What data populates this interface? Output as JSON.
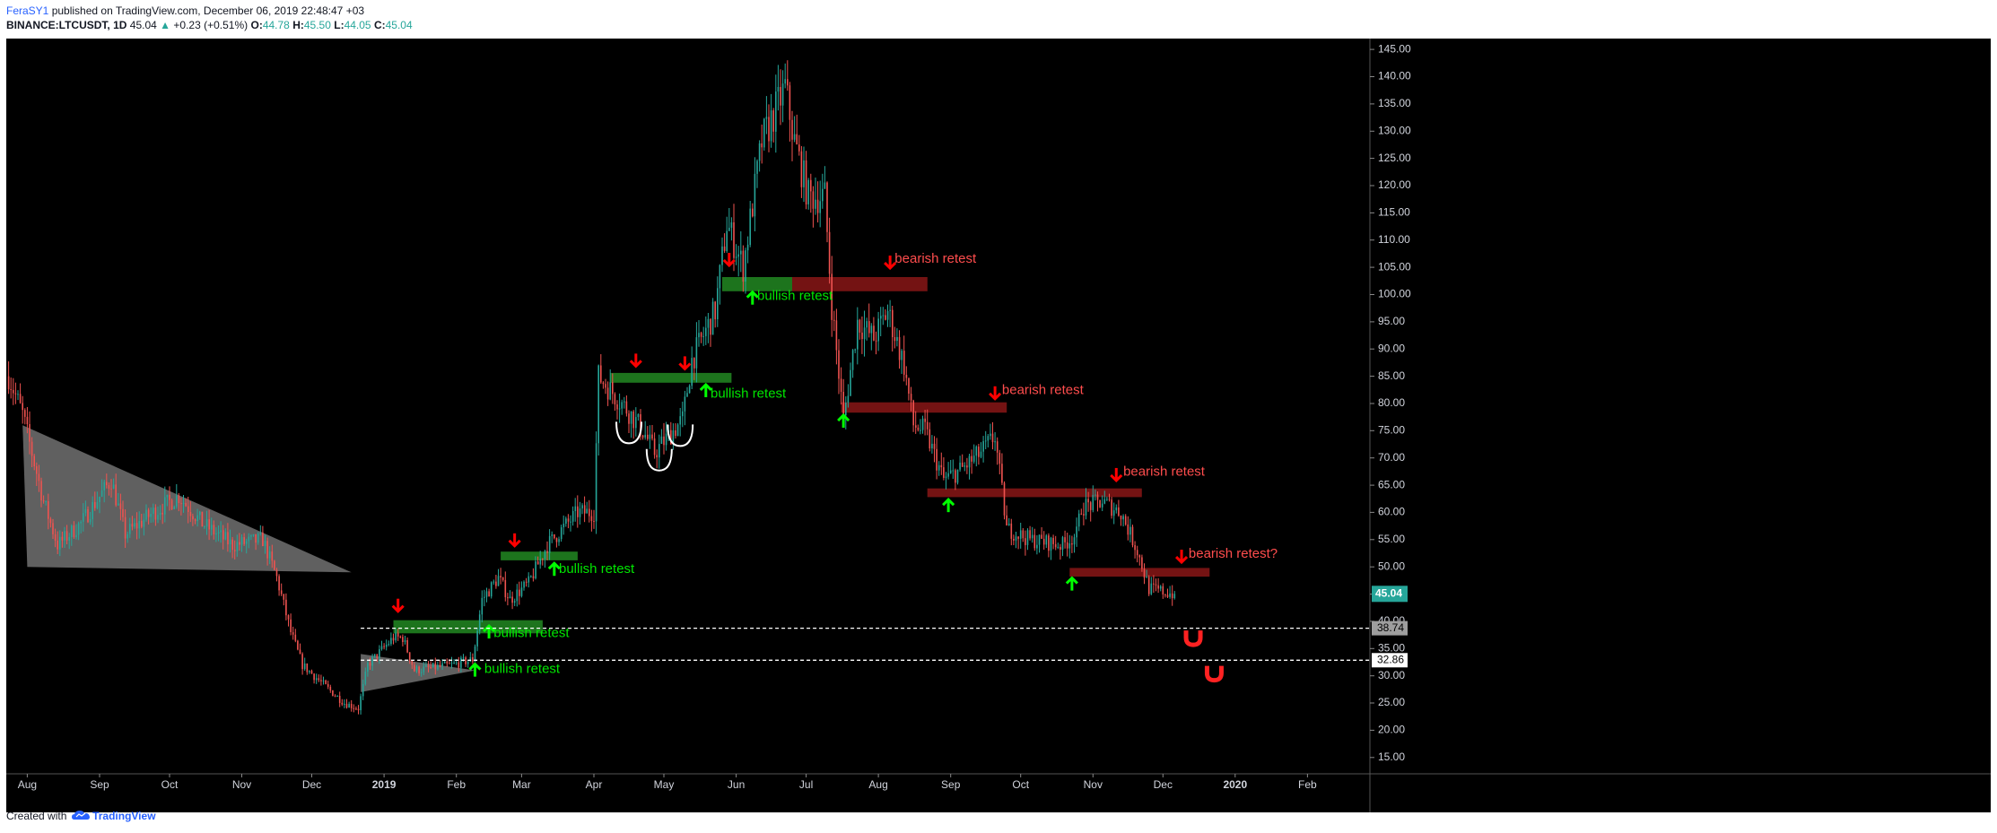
{
  "header": {
    "author": "FeraSY1",
    "published_text": " published on TradingView.com, December 06, 2019 22:48:47 +03",
    "symbol": "BINANCE:LTCUSDT, 1D",
    "last": "45.04",
    "change_arrow": "▲",
    "change": "+0.23 (+0.51%)",
    "open_label": "O:",
    "open": "44.78",
    "high_label": "H:",
    "high": "45.50",
    "low_label": "L:",
    "low": "44.05",
    "close_label": "C:",
    "close": "45.04"
  },
  "footer": {
    "created_with": "Created with",
    "brand": "TradingView",
    "brand_icon": "tradingview-cloud-icon"
  },
  "colors": {
    "background": "#000000",
    "up": "#26a69a",
    "down": "#ef5350",
    "support_zone": "#1f7a1f",
    "resistance_zone": "#7a1414",
    "bullish_text": "#00e600",
    "bearish_text": "#ff4d4d",
    "price_badge": "#26a69a"
  },
  "chart_data": {
    "type": "candlestick",
    "symbol": "BINANCE:LTCUSDT",
    "timeframe": "1D",
    "x_tick_labels": [
      "Aug",
      "Sep",
      "Oct",
      "Nov",
      "Dec",
      "2019",
      "Feb",
      "Mar",
      "Apr",
      "May",
      "Jun",
      "Jul",
      "Aug",
      "Sep",
      "Oct",
      "Nov",
      "Dec",
      "2020",
      "Feb"
    ],
    "y_tick_labels": [
      "15.00",
      "20.00",
      "25.00",
      "30.00",
      "35.00",
      "40.00",
      "45.00",
      "50.00",
      "55.00",
      "60.00",
      "65.00",
      "70.00",
      "75.00",
      "80.00",
      "85.00",
      "90.00",
      "95.00",
      "100.00",
      "105.00",
      "110.00",
      "115.00",
      "120.00",
      "125.00",
      "130.00",
      "135.00",
      "140.00",
      "145.00"
    ],
    "ylim": [
      12,
      147
    ],
    "xlim": [
      "2018-07-23",
      "2020-02-27"
    ],
    "last_price_label": "45.04",
    "last_price": 45.04,
    "levels": [
      {
        "label": "38.74",
        "value": 38.74
      },
      {
        "label": "32.86",
        "value": 32.86
      }
    ],
    "price_path": [
      [
        "2018-07-24",
        85
      ],
      [
        "2018-07-30",
        78
      ],
      [
        "2018-08-08",
        62
      ],
      [
        "2018-08-14",
        54
      ],
      [
        "2018-08-24",
        58
      ],
      [
        "2018-09-06",
        66
      ],
      [
        "2018-09-12",
        56
      ],
      [
        "2018-09-24",
        60
      ],
      [
        "2018-10-05",
        63
      ],
      [
        "2018-10-15",
        58
      ],
      [
        "2018-10-28",
        54
      ],
      [
        "2018-11-10",
        55
      ],
      [
        "2018-11-16",
        48
      ],
      [
        "2018-11-22",
        38
      ],
      [
        "2018-11-27",
        32
      ],
      [
        "2018-12-07",
        28
      ],
      [
        "2018-12-15",
        25
      ],
      [
        "2018-12-21",
        24
      ],
      [
        "2018-12-25",
        32
      ],
      [
        "2019-01-05",
        37
      ],
      [
        "2019-01-09",
        37
      ],
      [
        "2019-01-14",
        31
      ],
      [
        "2019-01-30",
        32
      ],
      [
        "2019-02-08",
        33
      ],
      [
        "2019-02-12",
        44
      ],
      [
        "2019-02-19",
        48
      ],
      [
        "2019-02-24",
        44
      ],
      [
        "2019-03-04",
        47
      ],
      [
        "2019-03-12",
        54
      ],
      [
        "2019-03-25",
        60
      ],
      [
        "2019-04-01",
        60
      ],
      [
        "2019-04-03",
        85
      ],
      [
        "2019-04-15",
        79
      ],
      [
        "2019-04-22",
        75
      ],
      [
        "2019-04-27",
        71
      ],
      [
        "2019-05-01",
        73
      ],
      [
        "2019-05-09",
        77
      ],
      [
        "2019-05-13",
        88
      ],
      [
        "2019-05-23",
        97
      ],
      [
        "2019-05-28",
        113
      ],
      [
        "2019-06-04",
        105
      ],
      [
        "2019-06-12",
        128
      ],
      [
        "2019-06-22",
        138
      ],
      [
        "2019-06-26",
        128
      ],
      [
        "2019-07-02",
        118
      ],
      [
        "2019-07-09",
        118
      ],
      [
        "2019-07-12",
        98
      ],
      [
        "2019-07-17",
        77
      ],
      [
        "2019-07-23",
        95
      ],
      [
        "2019-07-30",
        92
      ],
      [
        "2019-08-05",
        97
      ],
      [
        "2019-08-12",
        87
      ],
      [
        "2019-08-16",
        76
      ],
      [
        "2019-08-21",
        75
      ],
      [
        "2019-08-29",
        66
      ],
      [
        "2019-09-06",
        68
      ],
      [
        "2019-09-14",
        71
      ],
      [
        "2019-09-20",
        74
      ],
      [
        "2019-09-25",
        57
      ],
      [
        "2019-10-05",
        55
      ],
      [
        "2019-10-19",
        54
      ],
      [
        "2019-10-25",
        56
      ],
      [
        "2019-10-27",
        61
      ],
      [
        "2019-11-05",
        62
      ],
      [
        "2019-11-13",
        60
      ],
      [
        "2019-11-20",
        53
      ],
      [
        "2019-11-25",
        46
      ],
      [
        "2019-12-06",
        45
      ]
    ],
    "annotations": [
      {
        "type": "triangle",
        "points": [
          [
            "2018-07-30",
            76
          ],
          [
            "2018-08-01",
            50
          ],
          [
            "2018-12-18",
            49
          ]
        ]
      },
      {
        "type": "triangle",
        "points": [
          [
            "2018-12-22",
            27
          ],
          [
            "2018-12-22",
            34
          ],
          [
            "2019-02-09",
            31
          ]
        ]
      },
      {
        "type": "zone",
        "sentiment": "bullish",
        "x": [
          "2019-01-05",
          "2019-03-10"
        ],
        "y": [
          37.8,
          40.2
        ]
      },
      {
        "type": "zone",
        "sentiment": "bullish",
        "x": [
          "2019-02-20",
          "2019-03-25"
        ],
        "y": [
          51.2,
          52.8
        ]
      },
      {
        "type": "zone",
        "sentiment": "bullish",
        "x": [
          "2019-04-08",
          "2019-05-30"
        ],
        "y": [
          83.8,
          85.6
        ]
      },
      {
        "type": "zone",
        "sentiment": "bullish",
        "x": [
          "2019-05-26",
          "2019-06-25"
        ],
        "y": [
          100.6,
          103.2
        ]
      },
      {
        "type": "zone",
        "sentiment": "bearish",
        "x": [
          "2019-06-25",
          "2019-08-22"
        ],
        "y": [
          100.6,
          103.2
        ]
      },
      {
        "type": "zone",
        "sentiment": "bearish",
        "x": [
          "2019-07-16",
          "2019-09-25"
        ],
        "y": [
          78.3,
          80.2
        ]
      },
      {
        "type": "zone",
        "sentiment": "bearish",
        "x": [
          "2019-08-22",
          "2019-11-22"
        ],
        "y": [
          62.8,
          64.4
        ]
      },
      {
        "type": "zone",
        "sentiment": "bearish",
        "x": [
          "2019-10-22",
          "2019-12-21"
        ],
        "y": [
          48.2,
          49.8
        ]
      },
      {
        "type": "arrow",
        "direction": "down",
        "x": "2019-01-07",
        "y": 43
      },
      {
        "type": "arrow",
        "direction": "down",
        "x": "2019-02-26",
        "y": 55
      },
      {
        "type": "arrow",
        "direction": "down",
        "x": "2019-04-19",
        "y": 88
      },
      {
        "type": "arrow",
        "direction": "down",
        "x": "2019-05-10",
        "y": 87.5
      },
      {
        "type": "arrow",
        "direction": "down",
        "x": "2019-05-29",
        "y": 106.5
      },
      {
        "type": "arrow",
        "direction": "down",
        "x": "2019-08-06",
        "y": 106
      },
      {
        "type": "arrow",
        "direction": "down",
        "x": "2019-09-20",
        "y": 82
      },
      {
        "type": "arrow",
        "direction": "down",
        "x": "2019-11-11",
        "y": 67
      },
      {
        "type": "arrow",
        "direction": "down",
        "x": "2019-12-09",
        "y": 52
      },
      {
        "type": "arrow",
        "direction": "up",
        "x": "2019-02-15",
        "y": 38
      },
      {
        "type": "arrow",
        "direction": "up",
        "x": "2019-02-09",
        "y": 31
      },
      {
        "type": "arrow",
        "direction": "up",
        "x": "2019-03-15",
        "y": 49.5
      },
      {
        "type": "arrow",
        "direction": "up",
        "x": "2019-05-19",
        "y": 82.3
      },
      {
        "type": "arrow",
        "direction": "up",
        "x": "2019-06-08",
        "y": 99.3
      },
      {
        "type": "arrow",
        "direction": "up",
        "x": "2019-07-17",
        "y": 76.7
      },
      {
        "type": "arrow",
        "direction": "up",
        "x": "2019-08-31",
        "y": 61.2
      },
      {
        "type": "arrow",
        "direction": "up",
        "x": "2019-10-23",
        "y": 46.8
      },
      {
        "type": "arc",
        "x": "2019-04-16",
        "y": 75
      },
      {
        "type": "arc",
        "x": "2019-04-29",
        "y": 70
      },
      {
        "type": "arc",
        "x": "2019-05-08",
        "y": 74.5
      },
      {
        "type": "magnet",
        "x": "2019-12-14",
        "y": 37
      },
      {
        "type": "magnet",
        "x": "2019-12-23",
        "y": 30.5
      }
    ],
    "labels": [
      {
        "text": "bullish retest",
        "x": "2019-02-17",
        "y": 37.8,
        "sentiment": "bullish"
      },
      {
        "text": "bullish retest",
        "x": "2019-02-13",
        "y": 31.2,
        "sentiment": "bullish"
      },
      {
        "text": "bullish retest",
        "x": "2019-03-17",
        "y": 49.5,
        "sentiment": "bullish"
      },
      {
        "text": "bullish retest",
        "x": "2019-05-21",
        "y": 81.7,
        "sentiment": "bullish"
      },
      {
        "text": "bullish retest",
        "x": "2019-06-10",
        "y": 99.7,
        "sentiment": "bullish"
      },
      {
        "text": "bearish retest",
        "x": "2019-08-08",
        "y": 106.5,
        "sentiment": "bearish"
      },
      {
        "text": "bearish retest",
        "x": "2019-09-23",
        "y": 82.4,
        "sentiment": "bearish"
      },
      {
        "text": "bearish retest",
        "x": "2019-11-14",
        "y": 67.4,
        "sentiment": "bearish"
      },
      {
        "text": "bearish retest?",
        "x": "2019-12-12",
        "y": 52.3,
        "sentiment": "bearish"
      }
    ],
    "grid": false,
    "legend": "none"
  }
}
